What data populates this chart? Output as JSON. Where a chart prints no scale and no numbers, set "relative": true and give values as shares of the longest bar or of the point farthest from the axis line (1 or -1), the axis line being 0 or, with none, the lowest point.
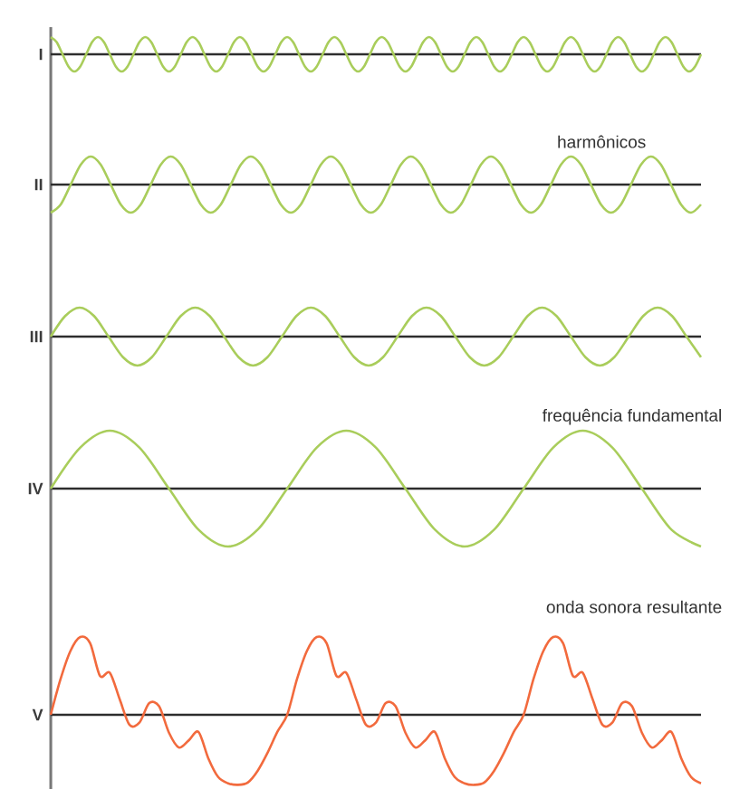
{
  "chart_data": [
    {
      "type": "line",
      "relative": true,
      "ylabel": "I",
      "color": "#a9cd5b",
      "categories": [
        null,
        null,
        null,
        null,
        null,
        null,
        null,
        null,
        null,
        null,
        null,
        null,
        null,
        null,
        null,
        null,
        null,
        null,
        null,
        null,
        null,
        null,
        null,
        null,
        null,
        null,
        null,
        null,
        null,
        null,
        null,
        null,
        null,
        null,
        null,
        null,
        null,
        null,
        null,
        null,
        null,
        null,
        null,
        null,
        null,
        null,
        null,
        null,
        null,
        null,
        null,
        null,
        null,
        null,
        null,
        null,
        null,
        null,
        null,
        null,
        null,
        null,
        null,
        null,
        null,
        null,
        null,
        null,
        null,
        null,
        null,
        null,
        null,
        null,
        null,
        null,
        null,
        null,
        null,
        null,
        null,
        null,
        null,
        null,
        null,
        null,
        null,
        null,
        null,
        null,
        null,
        null,
        null,
        null,
        null,
        null,
        null,
        null,
        null,
        null,
        null,
        null,
        null,
        null,
        null,
        null,
        null,
        null,
        null,
        null,
        null
      ],
      "values": [
        1,
        0.71,
        0,
        -0.71,
        -1,
        -0.71,
        0,
        0.71,
        1,
        0.71,
        0,
        -0.71,
        -1,
        -0.71,
        0,
        0.71,
        1,
        0.71,
        0,
        -0.71,
        -1,
        -0.71,
        0,
        0.71,
        1,
        0.71,
        0,
        -0.71,
        -1,
        -0.71,
        0,
        0.71,
        1,
        0.71,
        0,
        -0.71,
        -1,
        -0.71,
        0,
        0.71,
        1,
        0.71,
        0,
        -0.71,
        -1,
        -0.71,
        0,
        0.71,
        1,
        0.71,
        0,
        -0.71,
        -1,
        -0.71,
        0,
        0.71,
        1,
        0.71,
        0,
        -0.71,
        -1,
        -0.71,
        0,
        0.71,
        1,
        0.71,
        0,
        -0.71,
        -1,
        -0.71,
        0,
        0.71,
        1,
        0.71,
        0,
        -0.71,
        -1,
        -0.71,
        0,
        0.71,
        1,
        0.71,
        0,
        -0.71,
        -1,
        -0.71,
        0,
        0.71,
        1,
        0.71,
        0,
        -0.71,
        -1,
        -0.71,
        0,
        0.71,
        1,
        0.71,
        0,
        -0.71,
        -1,
        -0.71,
        0,
        0.71,
        1,
        0.71,
        0,
        -0.71,
        -1,
        -0.71,
        0
      ]
    },
    {
      "type": "line",
      "relative": true,
      "ylabel": "II",
      "color": "#a9cd5b",
      "annotations": [
        "harmônicos"
      ],
      "categories": [
        null,
        null,
        null,
        null,
        null,
        null,
        null,
        null,
        null,
        null,
        null,
        null,
        null,
        null,
        null,
        null,
        null,
        null,
        null,
        null,
        null,
        null,
        null,
        null,
        null,
        null,
        null,
        null,
        null,
        null,
        null,
        null,
        null,
        null,
        null,
        null,
        null,
        null,
        null,
        null,
        null,
        null,
        null,
        null,
        null,
        null,
        null,
        null,
        null,
        null,
        null,
        null,
        null,
        null,
        null,
        null,
        null,
        null,
        null,
        null,
        null,
        null,
        null,
        null,
        null,
        null
      ],
      "values": [
        -1,
        -0.71,
        0,
        0.71,
        1,
        0.71,
        0,
        -0.71,
        -1,
        -0.71,
        0,
        0.71,
        1,
        0.71,
        0,
        -0.71,
        -1,
        -0.71,
        0,
        0.71,
        1,
        0.71,
        0,
        -0.71,
        -1,
        -0.71,
        0,
        0.71,
        1,
        0.71,
        0,
        -0.71,
        -1,
        -0.71,
        0,
        0.71,
        1,
        0.71,
        0,
        -0.71,
        -1,
        -0.71,
        0,
        0.71,
        1,
        0.71,
        0,
        -0.71,
        -1,
        -0.71,
        0,
        0.71,
        1,
        0.71,
        0,
        -0.71,
        -1,
        -0.71,
        0,
        0.71,
        1,
        0.71,
        0,
        -0.71,
        -1,
        -0.71
      ]
    },
    {
      "type": "line",
      "relative": true,
      "ylabel": "III",
      "color": "#a9cd5b",
      "categories": [
        null,
        null,
        null,
        null,
        null,
        null,
        null,
        null,
        null,
        null,
        null,
        null,
        null,
        null,
        null,
        null,
        null,
        null,
        null,
        null,
        null,
        null,
        null,
        null,
        null,
        null,
        null,
        null,
        null,
        null,
        null,
        null,
        null,
        null,
        null,
        null,
        null,
        null,
        null,
        null,
        null,
        null,
        null,
        null,
        null,
        null
      ],
      "values": [
        0,
        0.71,
        1,
        0.71,
        0,
        -0.71,
        -1,
        -0.71,
        0,
        0.71,
        1,
        0.71,
        0,
        -0.71,
        -1,
        -0.71,
        0,
        0.71,
        1,
        0.71,
        0,
        -0.71,
        -1,
        -0.71,
        0,
        0.71,
        1,
        0.71,
        0,
        -0.71,
        -1,
        -0.71,
        0,
        0.71,
        1,
        0.71,
        0,
        -0.71,
        -1,
        -0.71,
        0,
        0.71,
        1,
        0.71,
        0,
        -0.71
      ]
    },
    {
      "type": "line",
      "relative": true,
      "ylabel": "IV",
      "color": "#a9cd5b",
      "annotations": [
        "frequência fundamental"
      ],
      "categories": [
        null,
        null,
        null,
        null,
        null,
        null,
        null,
        null,
        null,
        null,
        null,
        null,
        null,
        null,
        null,
        null,
        null,
        null,
        null,
        null,
        null,
        null,
        null
      ],
      "values": [
        0,
        0.71,
        1,
        0.71,
        0,
        -0.71,
        -1,
        -0.71,
        0,
        0.71,
        1,
        0.71,
        0,
        -0.71,
        -1,
        -0.71,
        0,
        0.71,
        1,
        0.71,
        0,
        -0.71,
        -1
      ]
    },
    {
      "type": "line",
      "relative": true,
      "ylabel": "V",
      "color": "#f26a3d",
      "annotations": [
        "onda sonora resultante"
      ],
      "categories": [
        null,
        null,
        null,
        null,
        null,
        null,
        null,
        null,
        null,
        null,
        null,
        null,
        null,
        null,
        null,
        null,
        null,
        null,
        null,
        null,
        null,
        null,
        null,
        null,
        null,
        null,
        null,
        null,
        null,
        null,
        null,
        null,
        null,
        null,
        null,
        null,
        null,
        null,
        null,
        null,
        null,
        null,
        null,
        null,
        null,
        null,
        null,
        null,
        null,
        null,
        null,
        null,
        null,
        null,
        null,
        null,
        null,
        null,
        null,
        null,
        null,
        null,
        null,
        null,
        null,
        null,
        null
      ],
      "values": [
        0,
        0.46,
        0.82,
        1,
        0.92,
        0.5,
        0.54,
        0.2,
        -0.13,
        -0.1,
        0.15,
        0.11,
        -0.23,
        -0.42,
        -0.33,
        -0.22,
        -0.56,
        -0.8,
        -0.88,
        -0.9,
        -0.87,
        -0.72,
        -0.49,
        -0.22,
        0,
        0.46,
        0.82,
        1,
        0.92,
        0.5,
        0.54,
        0.2,
        -0.13,
        -0.1,
        0.15,
        0.11,
        -0.23,
        -0.42,
        -0.33,
        -0.22,
        -0.56,
        -0.8,
        -0.88,
        -0.9,
        -0.87,
        -0.72,
        -0.49,
        -0.22,
        0,
        0.46,
        0.82,
        1,
        0.92,
        0.5,
        0.54,
        0.2,
        -0.13,
        -0.1,
        0.15,
        0.11,
        -0.23,
        -0.42,
        -0.33,
        -0.22,
        -0.56,
        -0.8,
        -0.88
      ]
    }
  ]
}
